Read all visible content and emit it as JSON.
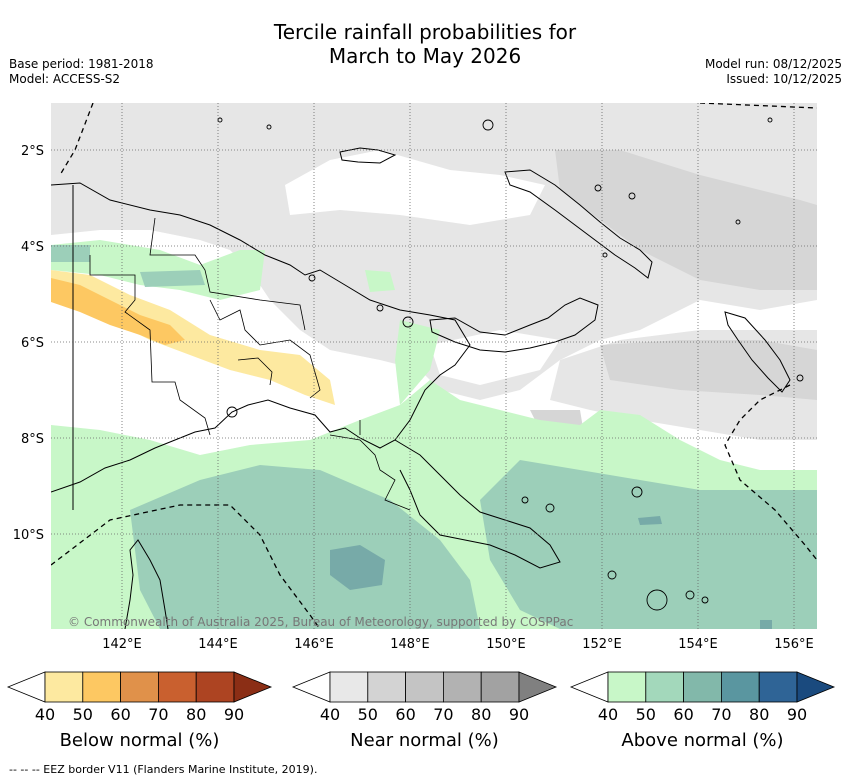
{
  "title_line1": "Tercile rainfall probabilities for",
  "title_line2": "March to May 2026",
  "meta_left": {
    "base_period": "Base period: 1981-2018",
    "model": "Model: ACCESS-S2"
  },
  "meta_right": {
    "model_run": "Model run: 08/12/2025",
    "issued": "Issued: 10/12/2025"
  },
  "map": {
    "region": "Papua New Guinea",
    "lat_labels": [
      "2°S",
      "4°S",
      "6°S",
      "8°S",
      "10°S"
    ],
    "lon_labels": [
      "142°E",
      "144°E",
      "146°E",
      "148°E",
      "150°E",
      "152°E",
      "154°E",
      "156°E"
    ],
    "copyright": "© Commonwealth of Australia 2025, Bureau of Meteorology, supported by COSPPac"
  },
  "colorbars": [
    {
      "name": "below",
      "label": "Below normal (%)",
      "ticks": [
        "40",
        "50",
        "60",
        "70",
        "80",
        "90"
      ],
      "colors": [
        "#ffffff",
        "#fde9a0",
        "#fdc862",
        "#e0914a",
        "#c9602f",
        "#ad4422",
        "#8b2e15"
      ]
    },
    {
      "name": "near",
      "label": "Near normal (%)",
      "ticks": [
        "40",
        "50",
        "60",
        "70",
        "80",
        "90"
      ],
      "colors": [
        "#ffffff",
        "#e8e8e8",
        "#d3d3d3",
        "#c4c4c4",
        "#b2b2b2",
        "#a2a2a2",
        "#808080"
      ]
    },
    {
      "name": "above",
      "label": "Above normal (%)",
      "ticks": [
        "40",
        "50",
        "60",
        "70",
        "80",
        "90"
      ],
      "colors": [
        "#ffffff",
        "#c8f7c8",
        "#a3d8bb",
        "#82b8aa",
        "#5a96a0",
        "#2f6496",
        "#1a4a7e"
      ]
    }
  ],
  "footer": "-- -- -- EEZ border V11 (Flanders Marine Institute, 2019)."
}
